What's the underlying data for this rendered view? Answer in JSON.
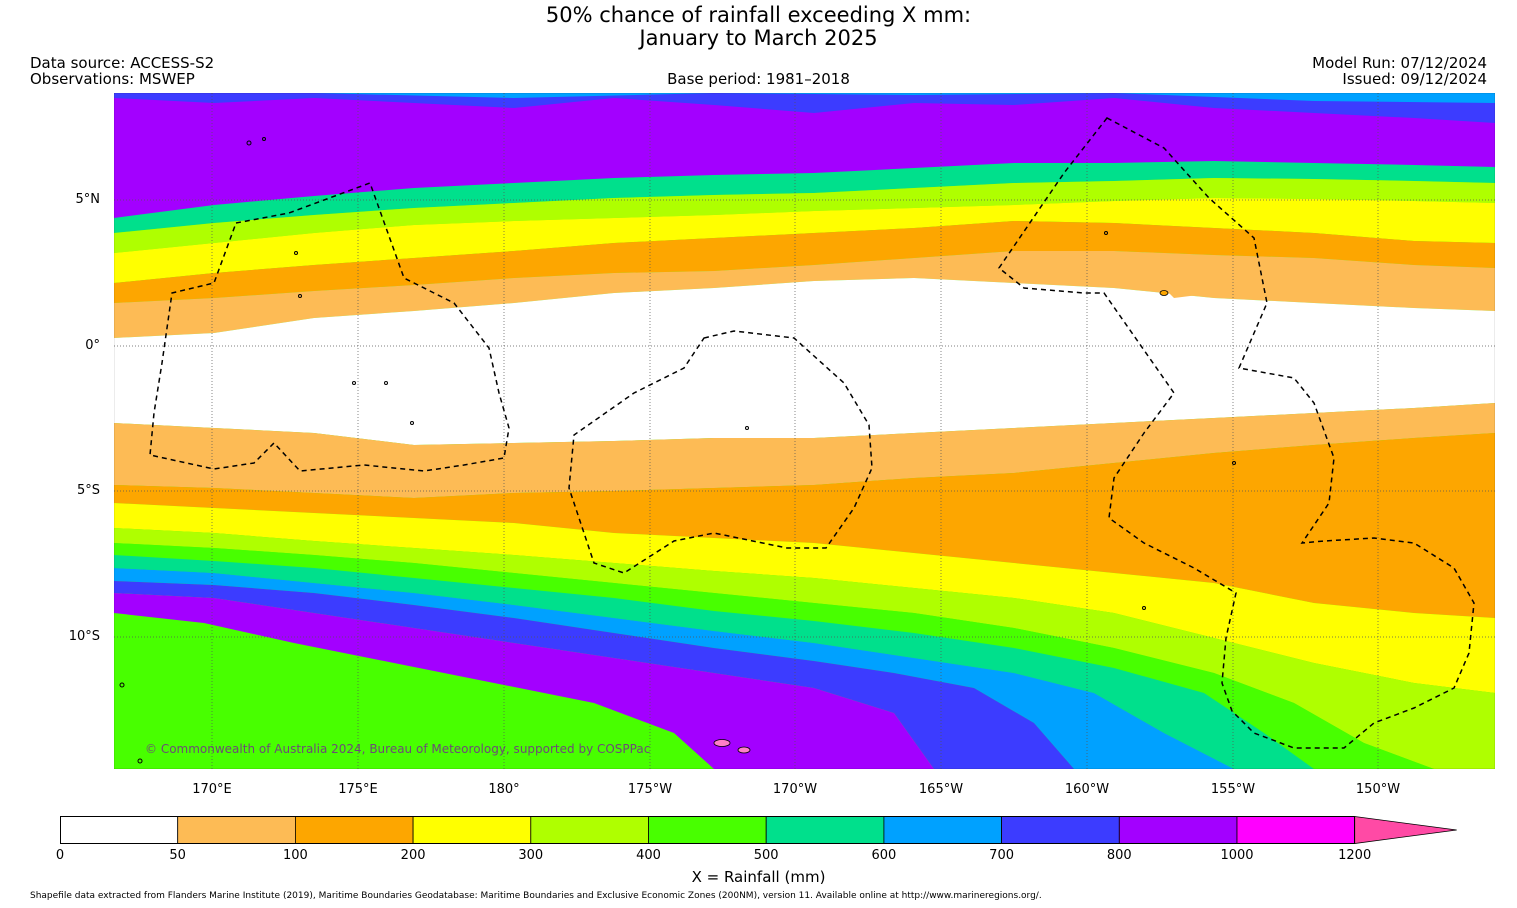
{
  "title": {
    "line1": "50% chance of rainfall exceeding X mm:",
    "line2": "January to March 2025"
  },
  "meta": {
    "data_source": "Data source: ACCESS-S2",
    "observations": "Observations: MSWEP",
    "base_period": "Base period: 1981–2018",
    "model_run": "Model Run: 07/12/2024",
    "issued": "Issued: 09/12/2024"
  },
  "axes": {
    "lat_labels": [
      "5°N",
      "0°",
      "5°S",
      "10°S"
    ],
    "lon_labels": [
      "170°E",
      "175°E",
      "180°",
      "175°W",
      "170°W",
      "165°W",
      "160°W",
      "155°W",
      "150°W"
    ]
  },
  "colorbar": {
    "title": "X = Rainfall (mm)",
    "tick_labels": [
      "0",
      "50",
      "100",
      "200",
      "300",
      "400",
      "500",
      "600",
      "700",
      "800",
      "1000",
      "1200"
    ],
    "colors": [
      "#ffffff",
      "#fdbb55",
      "#fda600",
      "#ffff00",
      "#afff00",
      "#48ff00",
      "#00e08c",
      "#00a1ff",
      "#3c3cff",
      "#a300ff",
      "#ff00ff",
      "#ff4aa5"
    ],
    "extend": "max"
  },
  "copyright": "© Commonwealth of Australia 2024, Bureau of Meteorology, supported by COSPPac",
  "footer": "Shapefile data extracted from Flanders Marine Institute (2019), Maritime Boundaries Geodatabase: Maritime Boundaries and Exclusive Economic Zones (200NM), version 11. Available online at http://www.marineregions.org/."
}
